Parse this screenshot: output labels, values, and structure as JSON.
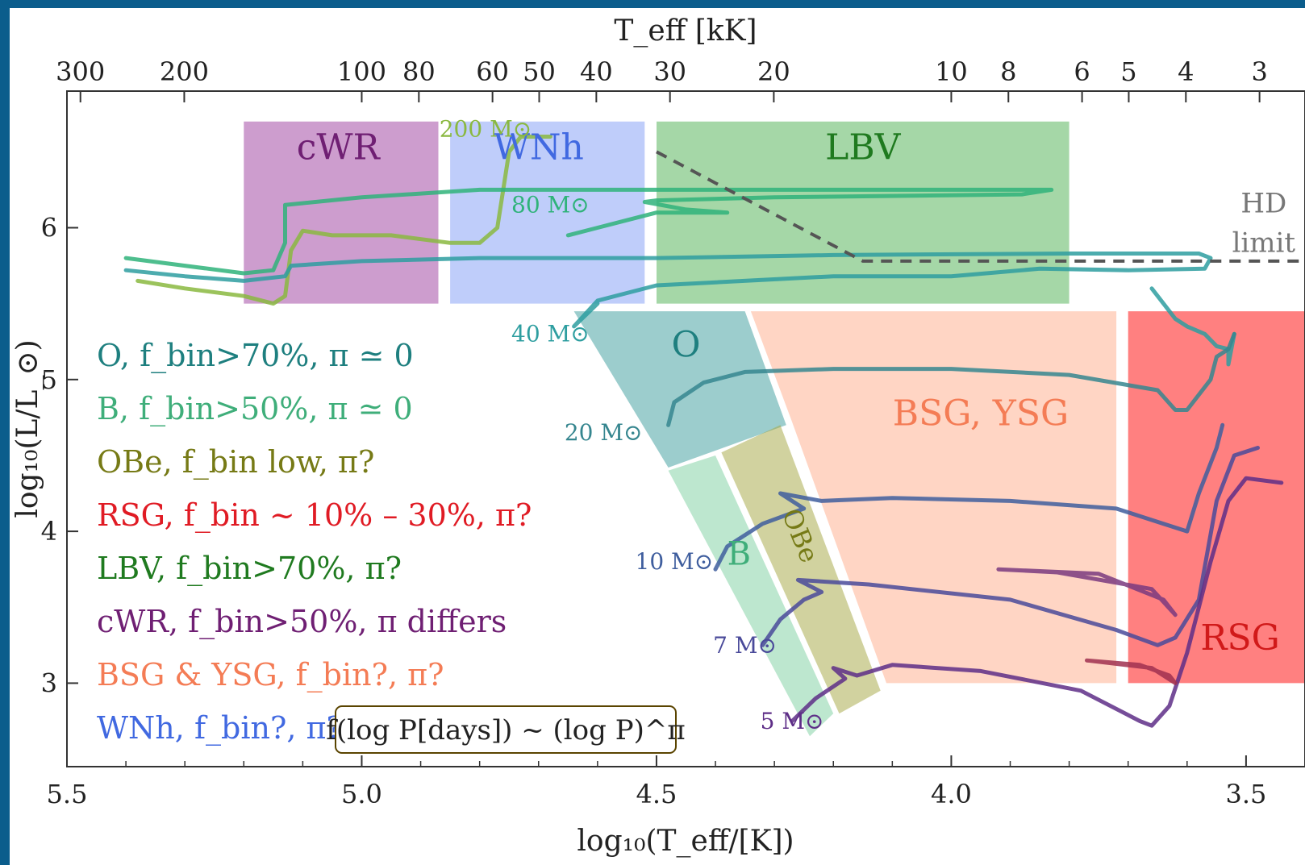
{
  "chart_data": {
    "type": "scatter",
    "title": "",
    "xlabel": "log₁₀(T_eff/[K])",
    "ylabel": "log₁₀(L/L_⊙)",
    "top_xlabel": "T_eff [kK]",
    "xlim": [
      5.5,
      3.4
    ],
    "ylim": [
      2.45,
      6.9
    ],
    "x_ticks": [
      5.5,
      5.0,
      4.5,
      4.0,
      3.5
    ],
    "y_ticks": [
      3,
      4,
      5,
      6
    ],
    "top_ticks_kK": [
      300,
      200,
      100,
      80,
      60,
      50,
      40,
      30,
      20,
      10,
      8,
      6,
      5,
      4,
      3
    ],
    "grid": false,
    "regions": [
      {
        "name": "cWR",
        "label": "cWR",
        "color": "#9b3c9e",
        "label_color": "#6f1f73",
        "poly": [
          [
            5.2,
            5.5
          ],
          [
            4.87,
            5.5
          ],
          [
            4.87,
            6.7
          ],
          [
            5.2,
            6.7
          ]
        ]
      },
      {
        "name": "WNh",
        "label": "WNh",
        "color": "#7f9cf5",
        "label_color": "#4169e1",
        "poly": [
          [
            4.85,
            5.5
          ],
          [
            4.52,
            5.5
          ],
          [
            4.52,
            6.7
          ],
          [
            4.85,
            6.7
          ]
        ]
      },
      {
        "name": "LBV",
        "label": "LBV",
        "color": "#4caf50",
        "label_color": "#1f7a1f",
        "poly": [
          [
            4.5,
            5.5
          ],
          [
            3.8,
            5.5
          ],
          [
            3.8,
            6.7
          ],
          [
            4.5,
            6.7
          ]
        ]
      },
      {
        "name": "O",
        "label": "O",
        "color": "#3a9c9c",
        "label_color": "#1e7f7f",
        "poly": [
          [
            4.64,
            5.45
          ],
          [
            4.35,
            5.45
          ],
          [
            4.28,
            4.7
          ],
          [
            4.48,
            4.42
          ]
        ]
      },
      {
        "name": "B",
        "label": "B",
        "color": "#7ccfa0",
        "label_color": "#3fae7a",
        "poly": [
          [
            4.48,
            4.4
          ],
          [
            4.4,
            4.5
          ],
          [
            4.2,
            2.8
          ],
          [
            4.24,
            2.65
          ]
        ]
      },
      {
        "name": "OBe",
        "label": "OBe",
        "color": "#a4a640",
        "label_color": "#767a16",
        "poly": [
          [
            4.39,
            4.52
          ],
          [
            4.29,
            4.7
          ],
          [
            4.12,
            2.95
          ],
          [
            4.19,
            2.8
          ]
        ]
      },
      {
        "name": "BSG, YSG",
        "label": "BSG, YSG",
        "color": "#ffab8a",
        "label_color": "#f47c55",
        "poly": [
          [
            4.34,
            5.45
          ],
          [
            3.72,
            5.45
          ],
          [
            3.72,
            3.0
          ],
          [
            4.11,
            3.0
          ],
          [
            4.27,
            4.72
          ]
        ]
      },
      {
        "name": "RSG",
        "label": "RSG",
        "color": "#ff3c3c",
        "label_color": "#d11a1a",
        "poly": [
          [
            3.7,
            5.45
          ],
          [
            3.4,
            5.45
          ],
          [
            3.4,
            3.0
          ],
          [
            3.7,
            3.0
          ]
        ]
      }
    ],
    "hd_limit": {
      "label_line1": "HD",
      "label_line2": "limit",
      "points": [
        [
          4.5,
          6.5
        ],
        [
          4.15,
          5.78
        ],
        [
          3.4,
          5.78
        ]
      ]
    },
    "tracks": [
      {
        "mass": "200 M⊙",
        "color": "#8ab840",
        "label_at": [
          4.79,
          6.6
        ],
        "points": [
          [
            5.38,
            5.65
          ],
          [
            5.3,
            5.6
          ],
          [
            5.2,
            5.55
          ],
          [
            5.15,
            5.5
          ],
          [
            5.13,
            5.55
          ],
          [
            5.12,
            5.85
          ],
          [
            5.1,
            5.98
          ],
          [
            5.05,
            5.95
          ],
          [
            4.95,
            5.95
          ],
          [
            4.85,
            5.9
          ],
          [
            4.8,
            5.9
          ],
          [
            4.77,
            6.0
          ],
          [
            4.75,
            6.5
          ],
          [
            4.73,
            6.6
          ],
          [
            4.68,
            6.6
          ]
        ]
      },
      {
        "mass": "80 M⊙",
        "color": "#2fb37a",
        "label_at": [
          4.68,
          6.1
        ],
        "points": [
          [
            5.4,
            5.8
          ],
          [
            5.3,
            5.75
          ],
          [
            5.2,
            5.7
          ],
          [
            5.15,
            5.72
          ],
          [
            5.13,
            5.9
          ],
          [
            5.13,
            6.15
          ],
          [
            5.0,
            6.2
          ],
          [
            4.8,
            6.25
          ],
          [
            4.5,
            6.25
          ],
          [
            4.2,
            6.25
          ],
          [
            3.88,
            6.25
          ],
          [
            3.83,
            6.25
          ],
          [
            3.88,
            6.22
          ],
          [
            4.3,
            6.2
          ],
          [
            4.5,
            6.18
          ],
          [
            4.52,
            6.17
          ],
          [
            4.45,
            6.12
          ],
          [
            4.38,
            6.1
          ],
          [
            4.5,
            6.1
          ],
          [
            4.6,
            6.0
          ],
          [
            4.65,
            5.95
          ]
        ]
      },
      {
        "mass": "40 M⊙",
        "color": "#2e9ea0",
        "label_at": [
          4.68,
          5.25
        ],
        "points": [
          [
            5.4,
            5.72
          ],
          [
            5.3,
            5.68
          ],
          [
            5.2,
            5.65
          ],
          [
            5.13,
            5.68
          ],
          [
            5.12,
            5.75
          ],
          [
            5.0,
            5.78
          ],
          [
            4.8,
            5.8
          ],
          [
            4.5,
            5.8
          ],
          [
            4.2,
            5.82
          ],
          [
            3.8,
            5.83
          ],
          [
            3.58,
            5.83
          ],
          [
            3.56,
            5.8
          ],
          [
            3.57,
            5.73
          ],
          [
            3.7,
            5.72
          ],
          [
            3.85,
            5.73
          ],
          [
            4.0,
            5.68
          ],
          [
            4.2,
            5.68
          ],
          [
            4.5,
            5.62
          ],
          [
            4.6,
            5.52
          ],
          [
            4.64,
            5.35
          ],
          [
            4.6,
            5.5
          ]
        ]
      },
      {
        "mass": "40 M⊙ cool branch",
        "color": "#2e9ea0",
        "label_at": null,
        "points": [
          [
            3.66,
            5.6
          ],
          [
            3.62,
            5.4
          ],
          [
            3.6,
            5.35
          ],
          [
            3.57,
            5.3
          ],
          [
            3.55,
            5.22
          ],
          [
            3.53,
            5.2
          ],
          [
            3.53,
            5.1
          ],
          [
            3.52,
            5.3
          ]
        ]
      },
      {
        "mass": "20 M⊙",
        "color": "#36868f",
        "label_at": [
          4.59,
          4.6
        ],
        "points": [
          [
            4.48,
            4.7
          ],
          [
            4.47,
            4.85
          ],
          [
            4.42,
            4.98
          ],
          [
            4.35,
            5.05
          ],
          [
            4.2,
            5.07
          ],
          [
            4.0,
            5.07
          ],
          [
            3.8,
            5.03
          ],
          [
            3.65,
            4.93
          ],
          [
            3.62,
            4.8
          ],
          [
            3.6,
            4.8
          ],
          [
            3.56,
            5.0
          ],
          [
            3.55,
            5.15
          ],
          [
            3.53,
            5.2
          ],
          [
            3.52,
            5.3
          ]
        ]
      },
      {
        "mass": "10 M⊙",
        "color": "#3f5e9e",
        "label_at": [
          4.47,
          3.75
        ],
        "points": [
          [
            4.4,
            3.75
          ],
          [
            4.38,
            3.9
          ],
          [
            4.32,
            4.05
          ],
          [
            4.25,
            4.15
          ],
          [
            4.29,
            4.25
          ],
          [
            4.22,
            4.2
          ],
          [
            4.1,
            4.22
          ],
          [
            3.9,
            4.2
          ],
          [
            3.72,
            4.15
          ],
          [
            3.64,
            4.05
          ],
          [
            3.6,
            4.0
          ],
          [
            3.58,
            4.25
          ],
          [
            3.55,
            4.55
          ],
          [
            3.54,
            4.7
          ]
        ]
      },
      {
        "mass": "7 M⊙",
        "color": "#4a4a9a",
        "label_at": [
          4.35,
          3.2
        ],
        "points": [
          [
            4.32,
            3.25
          ],
          [
            4.29,
            3.42
          ],
          [
            4.25,
            3.55
          ],
          [
            4.22,
            3.6
          ],
          [
            4.26,
            3.68
          ],
          [
            4.14,
            3.65
          ],
          [
            3.9,
            3.55
          ],
          [
            3.72,
            3.35
          ],
          [
            3.65,
            3.25
          ],
          [
            3.62,
            3.3
          ],
          [
            3.58,
            3.55
          ],
          [
            3.55,
            4.2
          ],
          [
            3.52,
            4.5
          ],
          [
            3.48,
            4.55
          ]
        ]
      },
      {
        "mass": "5 M⊙",
        "color": "#5e2e87",
        "label_at": [
          4.27,
          2.7
        ],
        "points": [
          [
            4.27,
            2.75
          ],
          [
            4.23,
            2.9
          ],
          [
            4.18,
            3.03
          ],
          [
            4.2,
            3.1
          ],
          [
            4.16,
            3.05
          ],
          [
            4.1,
            3.12
          ],
          [
            3.95,
            3.08
          ],
          [
            3.78,
            2.95
          ],
          [
            3.68,
            2.75
          ],
          [
            3.66,
            2.72
          ],
          [
            3.63,
            2.85
          ],
          [
            3.6,
            3.2
          ],
          [
            3.56,
            3.8
          ],
          [
            3.53,
            4.2
          ],
          [
            3.5,
            4.35
          ],
          [
            3.44,
            4.32
          ]
        ]
      },
      {
        "mass": "7 M⊙ blue loop",
        "color": "#7a3a7f",
        "label_at": null,
        "points": [
          [
            3.92,
            3.75
          ],
          [
            3.75,
            3.72
          ],
          [
            3.64,
            3.55
          ],
          [
            3.62,
            3.45
          ],
          [
            3.66,
            3.62
          ],
          [
            3.82,
            3.73
          ],
          [
            3.92,
            3.75
          ]
        ]
      },
      {
        "mass": "5 M⊙ blue loop",
        "color": "#a03050",
        "label_at": null,
        "points": [
          [
            3.77,
            3.15
          ],
          [
            3.68,
            3.12
          ],
          [
            3.63,
            3.05
          ],
          [
            3.62,
            3.0
          ],
          [
            3.66,
            3.1
          ],
          [
            3.77,
            3.15
          ]
        ]
      }
    ],
    "legend": [
      {
        "text": "O, f_bin>70%, π ≃ 0",
        "color": "#1e7f7f"
      },
      {
        "text": "B, f_bin>50%, π ≃ 0",
        "color": "#3fae7a"
      },
      {
        "text": "OBe, f_bin low, π?",
        "color": "#767a16"
      },
      {
        "text": "RSG, f_bin ~ 10% – 30%, π?",
        "color": "#e01b24"
      },
      {
        "text": "LBV, f_bin>70%, π?",
        "color": "#1f7a1f"
      },
      {
        "text": "cWR, f_bin>50%, π differs",
        "color": "#6f1f73"
      },
      {
        "text": "BSG & YSG, f_bin?, π?",
        "color": "#f47c55"
      },
      {
        "text": "WNh, f_bin?, π?",
        "color": "#4169e1"
      }
    ],
    "legend_placement": "left",
    "formula": "f(log P[days]) ~ (log P)^π"
  }
}
